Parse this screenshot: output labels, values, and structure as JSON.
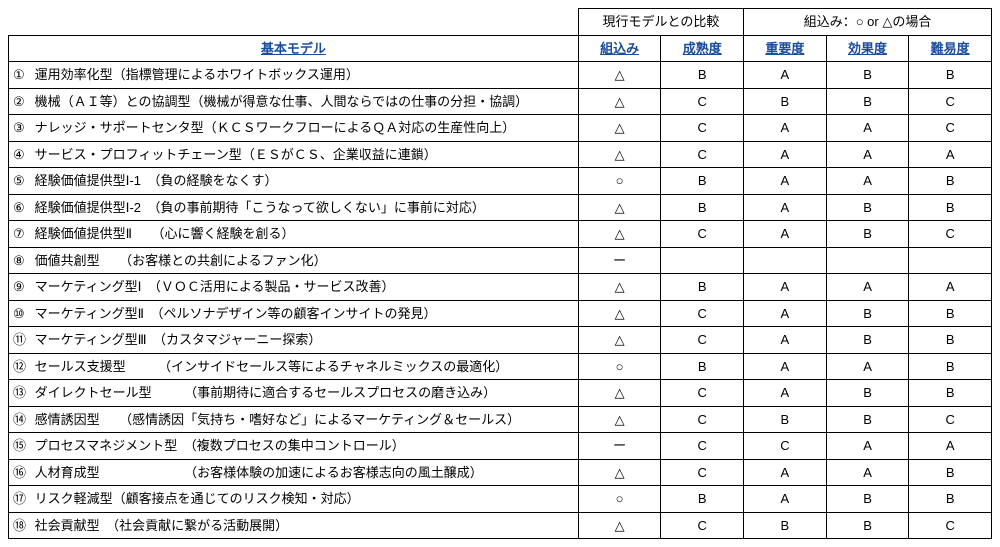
{
  "headerGroups": {
    "compare": "現行モデルとの比較",
    "inclusion": "組込み：○ or △の場合"
  },
  "headers": {
    "model": "基本モデル",
    "embed": "組込み",
    "maturity": "成熟度",
    "importance": "重要度",
    "effectiveness": "効果度",
    "difficulty": "難易度"
  },
  "colors": {
    "headerText": "#1a4d9e",
    "border": "#000000",
    "background": "#ffffff"
  },
  "circledNumbers": [
    "①",
    "②",
    "③",
    "④",
    "⑤",
    "⑥",
    "⑦",
    "⑧",
    "⑨",
    "⑩",
    "⑪",
    "⑫",
    "⑬",
    "⑭",
    "⑮",
    "⑯",
    "⑰",
    "⑱"
  ],
  "rows": [
    {
      "label": "運用効率化型（指標管理によるホワイトボックス運用）",
      "embed": "△",
      "maturity": "B",
      "importance": "A",
      "effectiveness": "B",
      "difficulty": "B"
    },
    {
      "label": "機械（ＡＩ等）との協調型（機械が得意な仕事、人間ならではの仕事の分担・協調）",
      "embed": "△",
      "maturity": "C",
      "importance": "B",
      "effectiveness": "B",
      "difficulty": "C"
    },
    {
      "label": "ナレッジ・サポートセンタ型（ＫＣＳワークフローによるＱＡ対応の生産性向上）",
      "embed": "△",
      "maturity": "C",
      "importance": "A",
      "effectiveness": "A",
      "difficulty": "C"
    },
    {
      "label": "サービス・プロフィットチェーン型（ＥＳがＣＳ、企業収益に連鎖）",
      "embed": "△",
      "maturity": "C",
      "importance": "A",
      "effectiveness": "A",
      "difficulty": "A"
    },
    {
      "label": "経験価値提供型Ⅰ-1　（負の経験をなくす）",
      "embed": "○",
      "maturity": "B",
      "importance": "A",
      "effectiveness": "A",
      "difficulty": "B"
    },
    {
      "label": "経験価値提供型Ⅰ-2　（負の事前期待「こうなって欲しくない」に事前に対応）",
      "embed": "△",
      "maturity": "B",
      "importance": "A",
      "effectiveness": "B",
      "difficulty": "B"
    },
    {
      "label": "経験価値提供型Ⅱ　　（心に響く経験を創る）",
      "embed": "△",
      "maturity": "C",
      "importance": "A",
      "effectiveness": "B",
      "difficulty": "C"
    },
    {
      "label": "価値共創型　　（お客様との共創によるファン化）",
      "embed": "ー",
      "maturity": "",
      "importance": "",
      "effectiveness": "",
      "difficulty": ""
    },
    {
      "label": "マーケティング型Ⅰ　（ＶＯＣ活用による製品・サービス改善）",
      "embed": "△",
      "maturity": "B",
      "importance": "A",
      "effectiveness": "A",
      "difficulty": "A"
    },
    {
      "label": "マーケティング型Ⅱ　（ペルソナデザイン等の顧客インサイトの発見）",
      "embed": "△",
      "maturity": "C",
      "importance": "A",
      "effectiveness": "B",
      "difficulty": "B"
    },
    {
      "label": "マーケティング型Ⅲ　（カスタマジャーニー探索）",
      "embed": "△",
      "maturity": "C",
      "importance": "A",
      "effectiveness": "B",
      "difficulty": "B"
    },
    {
      "label": "セールス支援型　　　（インサイドセールス等によるチャネルミックスの最適化）",
      "embed": "○",
      "maturity": "B",
      "importance": "A",
      "effectiveness": "A",
      "difficulty": "B"
    },
    {
      "label": "ダイレクトセール型　　　（事前期待に適合するセールスプロセスの磨き込み）",
      "embed": "△",
      "maturity": "C",
      "importance": "A",
      "effectiveness": "B",
      "difficulty": "B"
    },
    {
      "label": "感情誘因型　　（感情誘因「気持ち・嗜好など」によるマーケティング＆セールス）",
      "embed": "△",
      "maturity": "C",
      "importance": "B",
      "effectiveness": "B",
      "difficulty": "C"
    },
    {
      "label": "プロセスマネジメント型　（複数プロセスの集中コントロール）",
      "embed": "ー",
      "maturity": "C",
      "importance": "C",
      "effectiveness": "A",
      "difficulty": "A"
    },
    {
      "label": "人材育成型　　　　　　　（お客様体験の加速によるお客様志向の風土醸成）",
      "embed": "△",
      "maturity": "C",
      "importance": "A",
      "effectiveness": "A",
      "difficulty": "B"
    },
    {
      "label": "リスク軽減型（顧客接点を通じてのリスク検知・対応）",
      "embed": "○",
      "maturity": "B",
      "importance": "A",
      "effectiveness": "B",
      "difficulty": "B"
    },
    {
      "label": "社会貢献型　（社会貢献に繋がる活動展開）",
      "embed": "△",
      "maturity": "C",
      "importance": "B",
      "effectiveness": "B",
      "difficulty": "C"
    }
  ]
}
